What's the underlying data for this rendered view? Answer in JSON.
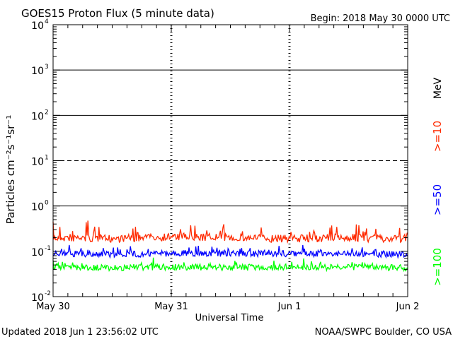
{
  "header": {
    "title": "GOES15 Proton Flux (5 minute data)",
    "begin": "Begin: 2018 May 30 0000 UTC"
  },
  "footer": {
    "updated": "Updated 2018 Jun  1 23:56:02 UTC",
    "credit": "NOAA/SWPC Boulder, CO USA"
  },
  "colors": {
    "series_10": "#ff2a00",
    "series_50": "#0000ff",
    "series_100": "#00ff00",
    "axis": "#000000"
  },
  "chart_data": {
    "type": "line",
    "title": "GOES15 Proton Flux (5 minute data)",
    "xlabel": "Universal Time",
    "ylabel": "Particles cm⁻²s⁻¹sr⁻¹",
    "y_scale": "log",
    "ylim": [
      0.01,
      10000
    ],
    "xlim": [
      "2018-05-30T00:00",
      "2018-06-02T00:00"
    ],
    "x_ticks": [
      "May 30",
      "May 31",
      "Jun 1",
      "Jun 2"
    ],
    "y_ticks": [
      {
        "base": "10",
        "exp": "-2"
      },
      {
        "base": "10",
        "exp": "-1"
      },
      {
        "base": "10",
        "exp": "0"
      },
      {
        "base": "10",
        "exp": "1"
      },
      {
        "base": "10",
        "exp": "2"
      },
      {
        "base": "10",
        "exp": "3"
      },
      {
        "base": "10",
        "exp": "4"
      }
    ],
    "threshold_lines": [
      {
        "value": 1,
        "style": "solid"
      },
      {
        "value": 10,
        "style": "dashed"
      },
      {
        "value": 100,
        "style": "solid"
      },
      {
        "value": 1000,
        "style": "solid"
      }
    ],
    "unit_label": "MeV",
    "series": [
      {
        "name": ">=10",
        "color": "#ff2a00",
        "x": [
          "2018-05-30T00:00",
          "2018-05-30T12:00",
          "2018-05-31T00:00",
          "2018-05-31T12:00",
          "2018-06-01T00:00",
          "2018-06-01T12:00",
          "2018-06-02T00:00"
        ],
        "values": [
          0.2,
          0.19,
          0.21,
          0.2,
          0.19,
          0.2,
          0.18
        ]
      },
      {
        "name": ">=50",
        "color": "#0000ff",
        "x": [
          "2018-05-30T00:00",
          "2018-05-30T12:00",
          "2018-05-31T00:00",
          "2018-05-31T12:00",
          "2018-06-01T00:00",
          "2018-06-01T12:00",
          "2018-06-02T00:00"
        ],
        "values": [
          0.09,
          0.085,
          0.09,
          0.09,
          0.088,
          0.09,
          0.085
        ]
      },
      {
        "name": ">=100",
        "color": "#00ff00",
        "x": [
          "2018-05-30T00:00",
          "2018-05-30T12:00",
          "2018-05-31T00:00",
          "2018-05-31T12:00",
          "2018-06-01T00:00",
          "2018-06-01T12:00",
          "2018-06-02T00:00"
        ],
        "values": [
          0.045,
          0.043,
          0.045,
          0.044,
          0.045,
          0.044,
          0.043
        ]
      }
    ]
  }
}
